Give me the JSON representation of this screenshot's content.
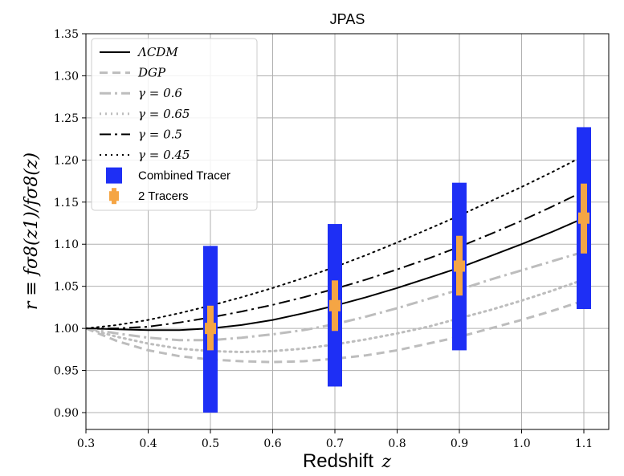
{
  "chart_data": {
    "type": "line",
    "title": "JPAS",
    "xlabel": {
      "text": "Redshift",
      "var": "z"
    },
    "ylabel": "r ≡ fσ8(z1)/fσ8(z)",
    "xlim": [
      0.3,
      1.14
    ],
    "ylim": [
      0.88,
      1.35
    ],
    "xticks": [
      0.3,
      0.4,
      0.5,
      0.6,
      0.7,
      0.8,
      0.9,
      1.0,
      1.1
    ],
    "yticks": [
      0.9,
      0.95,
      1.0,
      1.05,
      1.1,
      1.15,
      1.2,
      1.25,
      1.3,
      1.35
    ],
    "xtick_labels": [
      "0.3",
      "0.4",
      "0.5",
      "0.6",
      "0.7",
      "0.8",
      "0.9",
      "1.0",
      "1.1"
    ],
    "ytick_labels": [
      "0.90",
      "0.95",
      "1.00",
      "1.05",
      "1.10",
      "1.15",
      "1.20",
      "1.25",
      "1.30",
      "1.35"
    ],
    "grid": true,
    "legend_position": "top-left",
    "series": [
      {
        "name": "ΛCDM",
        "style": "solid",
        "color": "#000000",
        "width": 2,
        "x": [
          0.3,
          0.35,
          0.4,
          0.45,
          0.5,
          0.55,
          0.6,
          0.65,
          0.7,
          0.75,
          0.8,
          0.85,
          0.9,
          0.95,
          1.0,
          1.05,
          1.1
        ],
        "y": [
          1.0,
          0.999,
          0.998,
          0.998,
          1.0,
          1.004,
          1.01,
          1.018,
          1.027,
          1.037,
          1.048,
          1.06,
          1.072,
          1.086,
          1.1,
          1.115,
          1.131
        ]
      },
      {
        "name": "DGP",
        "style": "dashed",
        "color": "#bdbdbd",
        "width": 3,
        "x": [
          0.3,
          0.35,
          0.4,
          0.45,
          0.5,
          0.55,
          0.6,
          0.65,
          0.7,
          0.75,
          0.8,
          0.85,
          0.9,
          0.95,
          1.0,
          1.05,
          1.1
        ],
        "y": [
          1.0,
          0.985,
          0.974,
          0.967,
          0.963,
          0.961,
          0.96,
          0.961,
          0.964,
          0.968,
          0.974,
          0.982,
          0.99,
          1.0,
          1.01,
          1.021,
          1.033
        ]
      },
      {
        "name": "γ = 0.6",
        "style": "dashdot",
        "color": "#bdbdbd",
        "width": 3,
        "x": [
          0.3,
          0.35,
          0.4,
          0.45,
          0.5,
          0.55,
          0.6,
          0.65,
          0.7,
          0.75,
          0.8,
          0.85,
          0.9,
          0.95,
          1.0,
          1.05,
          1.1
        ],
        "y": [
          1.0,
          0.994,
          0.989,
          0.986,
          0.986,
          0.989,
          0.993,
          0.998,
          1.005,
          1.014,
          1.024,
          1.035,
          1.046,
          1.058,
          1.069,
          1.08,
          1.091
        ]
      },
      {
        "name": "γ = 0.65",
        "style": "dotted",
        "color": "#bdbdbd",
        "width": 3,
        "x": [
          0.3,
          0.35,
          0.4,
          0.45,
          0.5,
          0.55,
          0.6,
          0.65,
          0.7,
          0.75,
          0.8,
          0.85,
          0.9,
          0.95,
          1.0,
          1.05,
          1.1
        ],
        "y": [
          1.0,
          0.99,
          0.982,
          0.976,
          0.973,
          0.972,
          0.973,
          0.976,
          0.981,
          0.987,
          0.994,
          1.002,
          1.012,
          1.022,
          1.033,
          1.045,
          1.058
        ]
      },
      {
        "name": "γ = 0.5",
        "style": "dashdot",
        "color": "#000000",
        "width": 2,
        "x": [
          0.3,
          0.35,
          0.4,
          0.45,
          0.5,
          0.55,
          0.6,
          0.65,
          0.7,
          0.75,
          0.8,
          0.85,
          0.9,
          0.95,
          1.0,
          1.05,
          1.1
        ],
        "y": [
          1.0,
          1.0,
          1.002,
          1.007,
          1.013,
          1.02,
          1.028,
          1.037,
          1.047,
          1.058,
          1.07,
          1.083,
          1.097,
          1.112,
          1.128,
          1.145,
          1.163
        ]
      },
      {
        "name": "γ = 0.45",
        "style": "dotted",
        "color": "#000000",
        "width": 2,
        "x": [
          0.3,
          0.35,
          0.4,
          0.45,
          0.5,
          0.55,
          0.6,
          0.65,
          0.7,
          0.75,
          0.8,
          0.85,
          0.9,
          0.95,
          1.0,
          1.05,
          1.1
        ],
        "y": [
          1.0,
          1.004,
          1.01,
          1.018,
          1.027,
          1.037,
          1.048,
          1.06,
          1.073,
          1.087,
          1.102,
          1.118,
          1.134,
          1.151,
          1.168,
          1.186,
          1.205
        ]
      }
    ],
    "errorbars": [
      {
        "name": "Combined Tracer",
        "color": "#1e2ff5",
        "points": [
          {
            "x": 0.5,
            "y": 1.0,
            "ylow": 0.9,
            "yhigh": 1.098
          },
          {
            "x": 0.7,
            "y": 1.027,
            "ylow": 0.931,
            "yhigh": 1.124
          },
          {
            "x": 0.9,
            "y": 1.074,
            "ylow": 0.974,
            "yhigh": 1.173
          },
          {
            "x": 1.1,
            "y": 1.131,
            "ylow": 1.023,
            "yhigh": 1.239
          }
        ]
      },
      {
        "name": "2 Tracers",
        "color": "#f5a544",
        "points": [
          {
            "x": 0.5,
            "y": 1.0,
            "ylow": 0.974,
            "yhigh": 1.027
          },
          {
            "x": 0.7,
            "y": 1.027,
            "ylow": 0.997,
            "yhigh": 1.057
          },
          {
            "x": 0.9,
            "y": 1.074,
            "ylow": 1.039,
            "yhigh": 1.11
          },
          {
            "x": 1.1,
            "y": 1.131,
            "ylow": 1.089,
            "yhigh": 1.172
          }
        ]
      }
    ]
  }
}
